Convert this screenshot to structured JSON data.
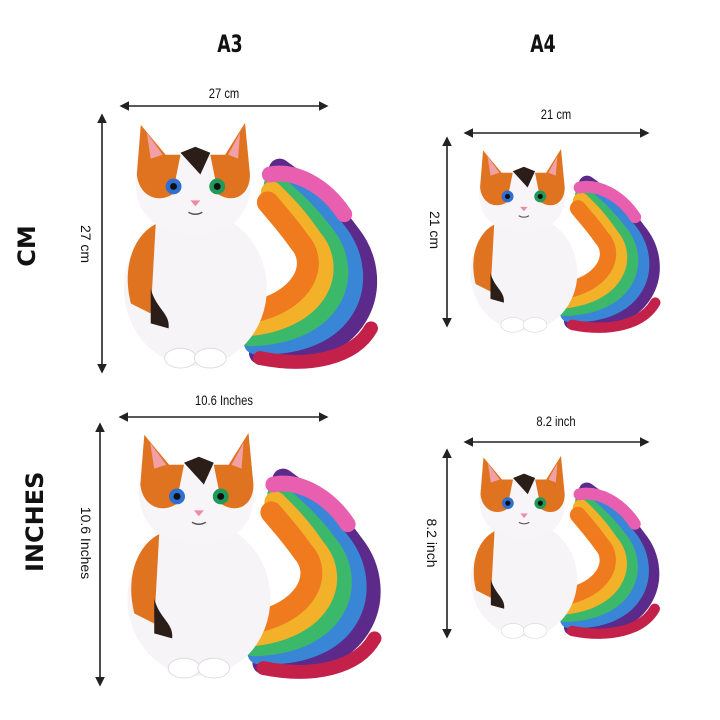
{
  "columns": {
    "a3": "A3",
    "a4": "A4"
  },
  "rows": {
    "cm": "CM",
    "inches": "INCHES"
  },
  "dimensions": {
    "a3_cm_width": "27 cm",
    "a3_cm_height": "27 cm",
    "a4_cm_width": "21 cm",
    "a4_cm_height": "21 cm",
    "a3_in_width": "10.6  Inches",
    "a3_in_height": "10.6 Inches",
    "a4_in_width": "8.2 inch",
    "a4_in_height": "8.2 inch"
  },
  "colors": {
    "arrow": "#222222",
    "eye_left": "#2f6fd1",
    "eye_right": "#1f9a5a",
    "fur_orange": "#e0731f"
  }
}
